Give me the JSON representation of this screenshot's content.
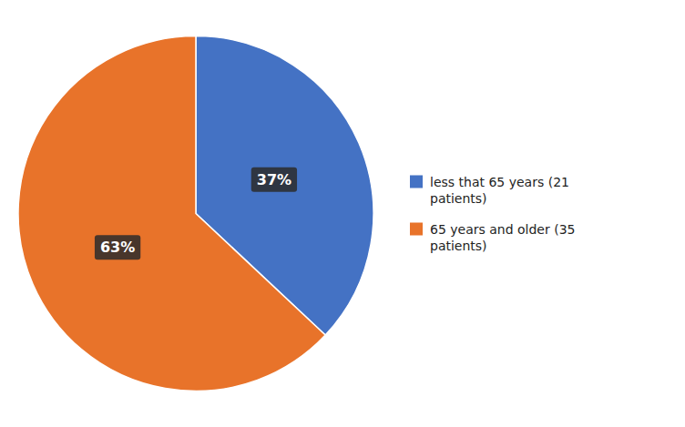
{
  "chart_data": {
    "type": "pie",
    "categories": [
      "less that 65 years (21\npatients)",
      "65 years and older (35\npatients)"
    ],
    "values": [
      37,
      63
    ],
    "value_labels": [
      "37%",
      "63%"
    ],
    "colors": [
      "#4472C4",
      "#E8732A"
    ],
    "data_labels": true,
    "legend": "right"
  }
}
